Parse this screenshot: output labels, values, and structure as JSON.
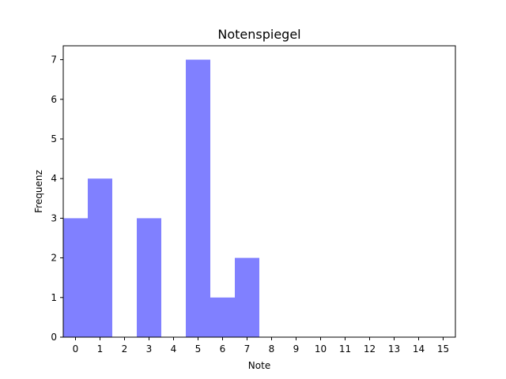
{
  "chart_data": {
    "type": "bar",
    "title": "Notenspiegel",
    "xlabel": "Note",
    "ylabel": "Frequenz",
    "categories": [
      0,
      1,
      2,
      3,
      4,
      5,
      6,
      7,
      8,
      9,
      10,
      11,
      12,
      13,
      14,
      15
    ],
    "values": [
      3,
      4,
      0,
      3,
      0,
      7,
      1,
      2,
      0,
      0,
      0,
      0,
      0,
      0,
      0,
      0
    ],
    "xlim": [
      -0.5,
      15.5
    ],
    "ylim": [
      0,
      7.35
    ],
    "yticks": [
      0,
      1,
      2,
      3,
      4,
      5,
      6,
      7
    ],
    "bar_color": "#8080ff",
    "grid": false,
    "legend": "none"
  }
}
